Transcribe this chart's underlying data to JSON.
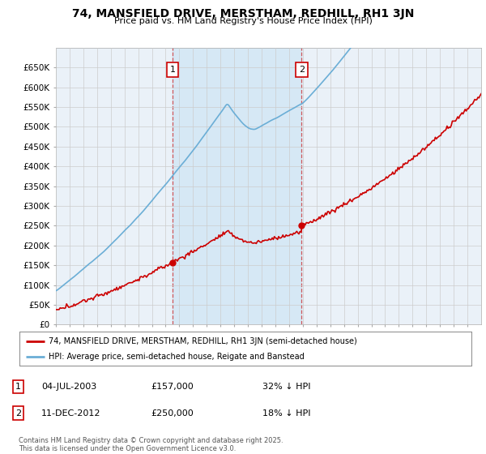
{
  "title": "74, MANSFIELD DRIVE, MERSTHAM, REDHILL, RH1 3JN",
  "subtitle": "Price paid vs. HM Land Registry's House Price Index (HPI)",
  "ylim": [
    0,
    700000
  ],
  "yticks": [
    0,
    50000,
    100000,
    150000,
    200000,
    250000,
    300000,
    350000,
    400000,
    450000,
    500000,
    550000,
    600000,
    650000
  ],
  "ytick_labels": [
    "£0",
    "£50K",
    "£100K",
    "£150K",
    "£200K",
    "£250K",
    "£300K",
    "£350K",
    "£400K",
    "£450K",
    "£500K",
    "£550K",
    "£600K",
    "£650K"
  ],
  "hpi_color": "#6baed6",
  "price_color": "#cc0000",
  "shade_color": "#d6e8f5",
  "sale1_date": 2003.5,
  "sale1_price": 157000,
  "sale2_date": 2012.92,
  "sale2_price": 250000,
  "legend_price_label": "74, MANSFIELD DRIVE, MERSTHAM, REDHILL, RH1 3JN (semi-detached house)",
  "legend_hpi_label": "HPI: Average price, semi-detached house, Reigate and Banstead",
  "footer": "Contains HM Land Registry data © Crown copyright and database right 2025.\nThis data is licensed under the Open Government Licence v3.0.",
  "background_color": "#ffffff",
  "grid_color": "#cccccc",
  "plot_bg_color": "#eaf1f8",
  "xstart": 1995,
  "xend": 2026
}
